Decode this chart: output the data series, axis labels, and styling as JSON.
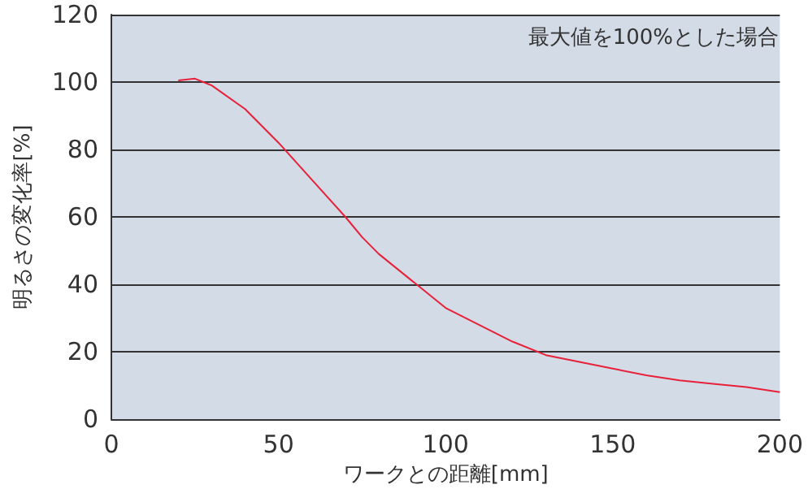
{
  "chart_data": {
    "type": "line",
    "xlabel": "ワークとの距離[mm]",
    "ylabel": "明るさの変化率[%]",
    "annotations": [
      "最大値を100%とした場合"
    ],
    "x": [
      20,
      25,
      30,
      40,
      50,
      60,
      70,
      75,
      80,
      90,
      100,
      110,
      120,
      130,
      140,
      150,
      160,
      170,
      180,
      190,
      200
    ],
    "series": [
      {
        "color": "#e8203a",
        "values": [
          100.5,
          101,
          99,
          92,
          82,
          71,
          60,
          54,
          49,
          41,
          33,
          28,
          23,
          19,
          17,
          15,
          13,
          11.5,
          10.5,
          9.5,
          8
        ]
      }
    ],
    "xlim": [
      0,
      200
    ],
    "xticks": [
      0,
      50,
      100,
      150,
      200
    ],
    "ylim": [
      0,
      120
    ],
    "yticks": [
      0,
      20,
      40,
      60,
      80,
      100,
      120
    ],
    "grid": "y",
    "marker": "none",
    "line_style": "solid"
  }
}
